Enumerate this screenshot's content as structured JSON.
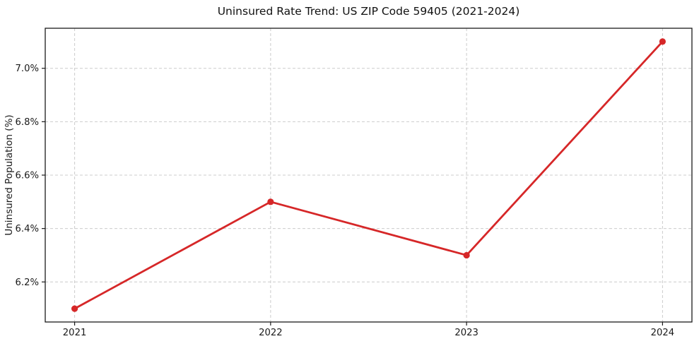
{
  "chart_data": {
    "type": "line",
    "title": "Uninsured Rate Trend: US ZIP Code 59405 (2021-2024)",
    "xlabel": "",
    "ylabel": "Uninsured Population (%)",
    "x": [
      2021,
      2022,
      2023,
      2024
    ],
    "values": [
      6.1,
      6.5,
      6.3,
      7.1
    ],
    "x_tick_labels": [
      "2021",
      "2022",
      "2023",
      "2024"
    ],
    "y_ticks": [
      6.2,
      6.4,
      6.6,
      6.8,
      7.0
    ],
    "y_tick_labels": [
      "6.2%",
      "6.4%",
      "6.6%",
      "6.8%",
      "7.0%"
    ],
    "xlim": [
      2020.85,
      2024.15
    ],
    "ylim": [
      6.05,
      7.15
    ],
    "grid": true,
    "grid_style": "dashed",
    "legend": false,
    "line_color": "#d62728",
    "marker_color": "#d62728",
    "grid_color": "#cccccc",
    "spine_color": "#1a1a1a",
    "background": "#ffffff"
  }
}
